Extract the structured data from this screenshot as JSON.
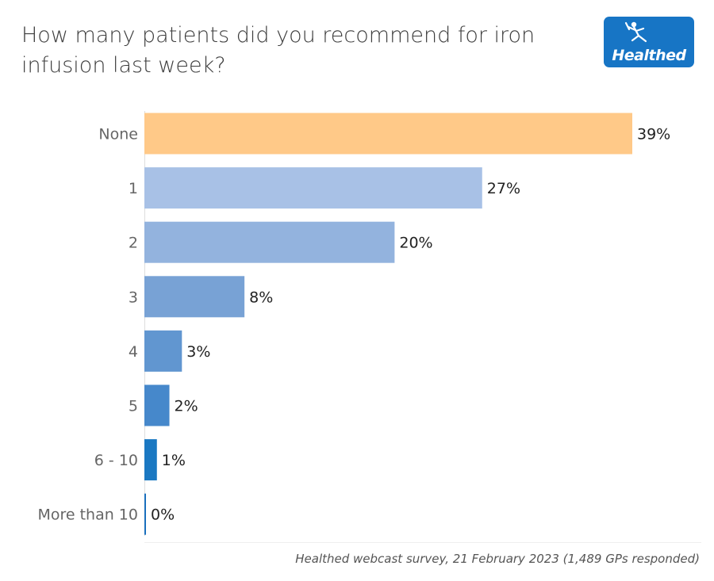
{
  "header": {
    "title": "How many patients did you recommend for iron infusion last week?"
  },
  "logo": {
    "text": "Healthed",
    "icon": "runner-figure-icon",
    "color": "#1775c5"
  },
  "chart_data": {
    "type": "bar",
    "orientation": "horizontal",
    "categories": [
      "None",
      "1",
      "2",
      "3",
      "4",
      "5",
      "6 - 10",
      "More than 10"
    ],
    "values": [
      39,
      27,
      20,
      8,
      3,
      2,
      1,
      0
    ],
    "data_labels": [
      "39%",
      "27%",
      "20%",
      "8%",
      "3%",
      "2%",
      "1%",
      "0%"
    ],
    "value_unit": "%",
    "colors": [
      "#ffc988",
      "#a8c1e6",
      "#93b3de",
      "#78a2d5",
      "#6196d0",
      "#4688cb",
      "#1a78c2",
      "#1a6fbd"
    ],
    "xlim": [
      0,
      39
    ],
    "grid": false
  },
  "footer": {
    "source": "Healthed webcast survey, 21 February 2023 (1,489 GPs responded)"
  }
}
